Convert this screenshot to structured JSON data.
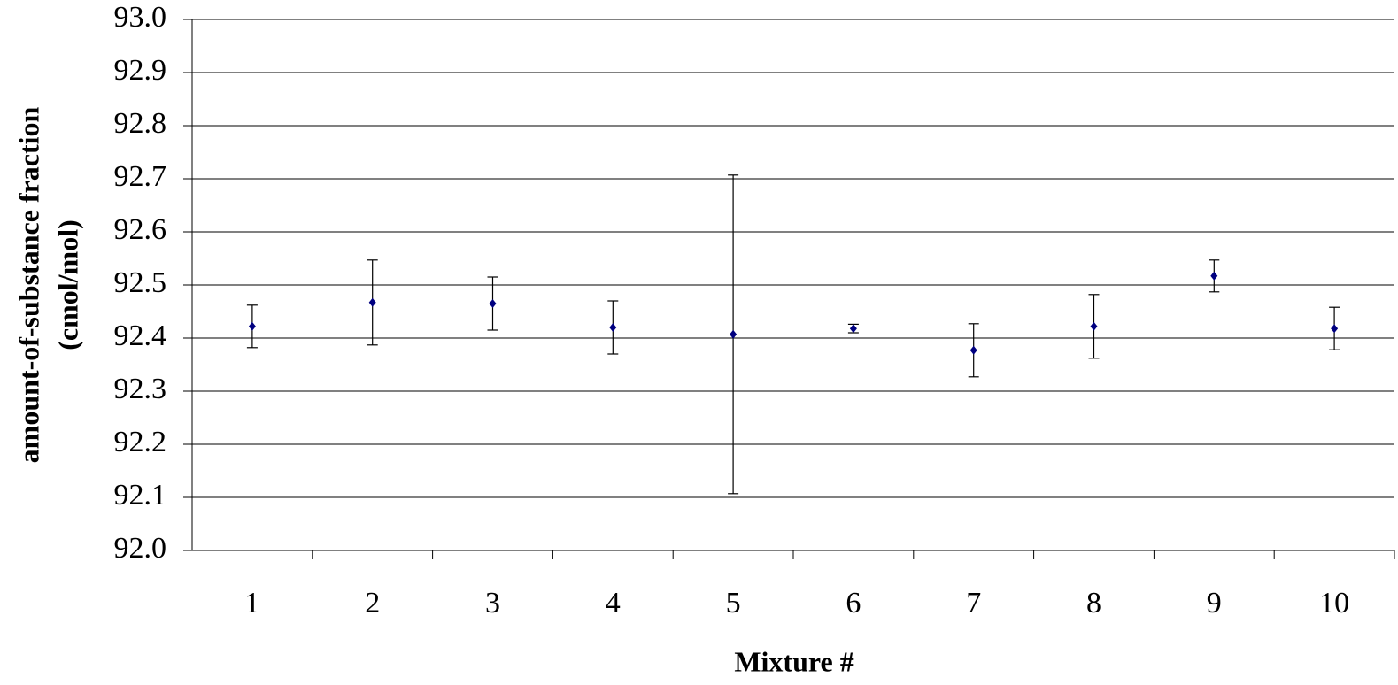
{
  "chart_data": {
    "type": "scatter",
    "xlabel": "Mixture #",
    "ylabel": [
      "amount-of-substance fraction",
      "(cmol/mol)"
    ],
    "categories": [
      "1",
      "2",
      "3",
      "4",
      "5",
      "6",
      "7",
      "8",
      "9",
      "10"
    ],
    "values": [
      92.422,
      92.467,
      92.465,
      92.42,
      92.407,
      92.418,
      92.377,
      92.422,
      92.517,
      92.418
    ],
    "errors": [
      0.04,
      0.08,
      0.05,
      0.05,
      0.3,
      0.008,
      0.05,
      0.06,
      0.03,
      0.04
    ],
    "color": "#000080",
    "ylim": [
      92.0,
      93.0
    ],
    "yticks": [
      {
        "value": 92.0,
        "label": "92.0"
      },
      92.1,
      92.2,
      92.3,
      92.4,
      92.5,
      92.6,
      92.7,
      92.8,
      92.9,
      {
        "value": 93.0,
        "label": "93.0"
      }
    ],
    "grid": true
  }
}
